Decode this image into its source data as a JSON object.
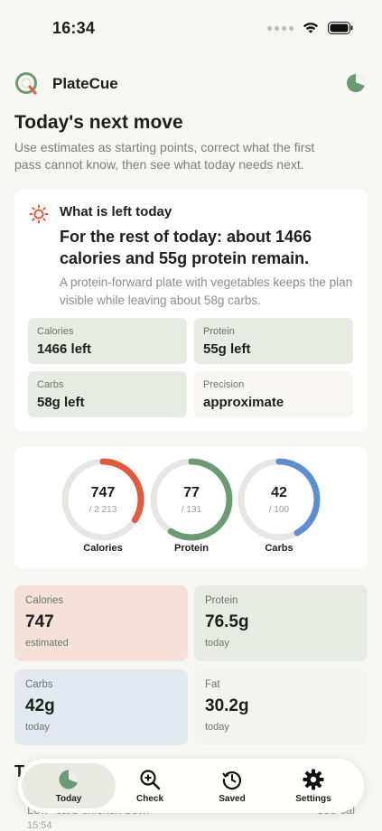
{
  "status_bar": {
    "time": "16:34"
  },
  "app": {
    "name": "PlateCue"
  },
  "page": {
    "title": "Today's next move",
    "subtitle": "Use estimates as starting points, correct what the first pass cannot know, then see what today needs next."
  },
  "remaining": {
    "label": "What is left today",
    "headline": "For the rest of today: about 1466 calories and 55g protein remain.",
    "explanation": "A protein-forward plate with vegetables keeps the plan visible while leaving about 58g carbs.",
    "tiles": [
      {
        "label": "Calories",
        "value": "1466 left"
      },
      {
        "label": "Protein",
        "value": "55g left"
      },
      {
        "label": "Carbs",
        "value": "58g left"
      },
      {
        "label": "Precision",
        "value": "approximate"
      }
    ]
  },
  "rings": [
    {
      "value": "747",
      "goal": "/ 2 213",
      "label": "Calories",
      "progress": 0.34,
      "color": "#e05a3c"
    },
    {
      "value": "77",
      "goal": "/ 131",
      "label": "Protein",
      "progress": 0.59,
      "color": "#6a9b72"
    },
    {
      "value": "42",
      "goal": "/ 100",
      "label": "Carbs",
      "progress": 0.42,
      "color": "#5b8fd1"
    }
  ],
  "stats": [
    {
      "label": "Calories",
      "value": "747",
      "note": "estimated",
      "color": "#f6e1da"
    },
    {
      "label": "Protein",
      "value": "76.5g",
      "note": "today",
      "color": "#e6ebe4"
    },
    {
      "label": "Carbs",
      "value": "42g",
      "note": "today",
      "color": "#e2e9f0"
    },
    {
      "label": "Fat",
      "value": "30.2g",
      "note": "today",
      "color": "#f3f3ef"
    }
  ],
  "behind_content": {
    "title": "T",
    "row_name": "Low- carb chicken bowl",
    "row_time": "15:54",
    "row_cal": "388 cal"
  },
  "tabs": [
    {
      "label": "Today",
      "icon": "pie-chart-icon",
      "active": true
    },
    {
      "label": "Check",
      "icon": "zoom-in-icon",
      "active": false
    },
    {
      "label": "Saved",
      "icon": "history-icon",
      "active": false
    },
    {
      "label": "Settings",
      "icon": "gear-icon",
      "active": false
    }
  ]
}
